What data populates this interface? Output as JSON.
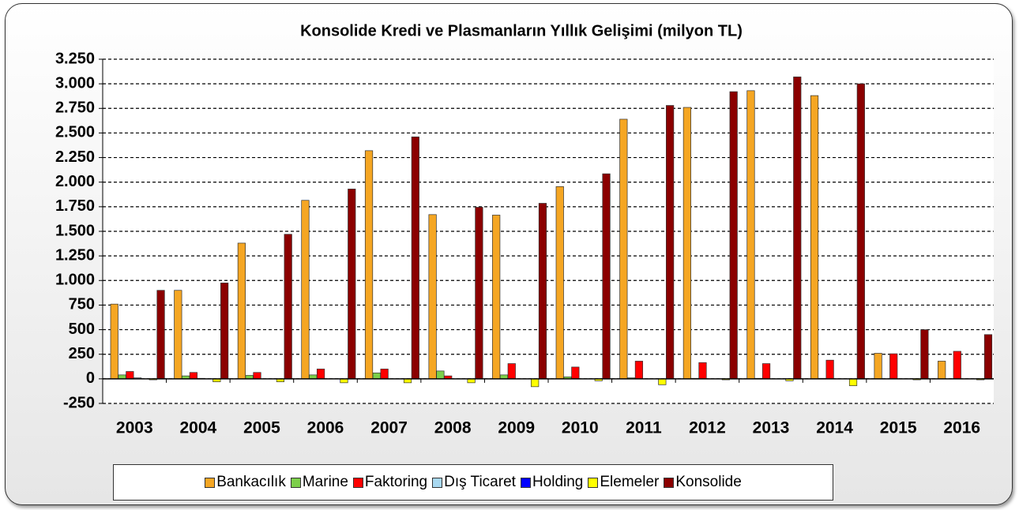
{
  "chart_data": {
    "type": "bar",
    "title": "Konsolide Kredi ve Plasmanların Yıllık Gelişimi (milyon TL)",
    "categories": [
      "2003",
      "2004",
      "2005",
      "2006",
      "2007",
      "2008",
      "2009",
      "2010",
      "2011",
      "2012",
      "2013",
      "2014",
      "2015",
      "2016"
    ],
    "series": [
      {
        "name": "Bankacılık",
        "color": "#f5a623",
        "values": [
          760,
          900,
          1380,
          1815,
          2320,
          1670,
          1665,
          1955,
          2640,
          2760,
          2930,
          2880,
          260,
          180
        ]
      },
      {
        "name": "Marine",
        "color": "#7ccf4a",
        "values": [
          40,
          30,
          35,
          40,
          60,
          80,
          40,
          20,
          10,
          5,
          5,
          5,
          0,
          0
        ]
      },
      {
        "name": "Faktoring",
        "color": "#ff0000",
        "values": [
          75,
          65,
          65,
          100,
          100,
          30,
          155,
          120,
          180,
          165,
          155,
          190,
          255,
          280
        ]
      },
      {
        "name": "Dış Ticaret",
        "color": "#a8d8f0",
        "values": [
          10,
          5,
          0,
          0,
          0,
          0,
          0,
          0,
          0,
          0,
          0,
          0,
          0,
          0
        ]
      },
      {
        "name": "Holding",
        "color": "#0000ff",
        "values": [
          0,
          0,
          0,
          0,
          0,
          0,
          0,
          0,
          0,
          0,
          0,
          0,
          0,
          0
        ]
      },
      {
        "name": "Elemeler",
        "color": "#ffff00",
        "values": [
          -10,
          -30,
          -30,
          -40,
          -40,
          -40,
          -80,
          -20,
          -60,
          -10,
          -20,
          -70,
          -10,
          -10
        ]
      },
      {
        "name": "Konsolide",
        "color": "#8b0000",
        "values": [
          900,
          975,
          1470,
          1930,
          2460,
          1745,
          1785,
          2085,
          2780,
          2920,
          3070,
          3000,
          500,
          450
        ]
      }
    ],
    "ylim": [
      -250,
      3250
    ],
    "yticks": [
      -250,
      0,
      250,
      500,
      750,
      {
        "value": 1000,
        "label": "1.000"
      },
      {
        "value": 1250,
        "label": "1.250"
      },
      {
        "value": 1500,
        "label": "1.500"
      },
      {
        "value": 1750,
        "label": "1.750"
      },
      {
        "value": 2000,
        "label": "2.000"
      },
      {
        "value": 2250,
        "label": "2.250"
      },
      {
        "value": 2500,
        "label": "2.500"
      },
      {
        "value": 2750,
        "label": "2.750"
      },
      {
        "value": 3000,
        "label": "3.000"
      },
      {
        "value": 3250,
        "label": "3.250"
      }
    ],
    "grid": true
  }
}
